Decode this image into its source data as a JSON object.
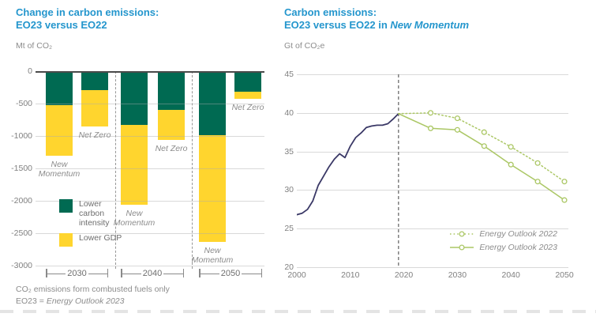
{
  "left_chart": {
    "title_line1": "Change in carbon emissions:",
    "title_line2": "EO23 versus EO22",
    "unit": "Mt of CO₂",
    "legend": [
      {
        "label": "Lower carbon intensity",
        "color": "#006a52"
      },
      {
        "label": "Lower GDP",
        "color": "#ffd52e"
      }
    ],
    "footnote1": "CO₂ emissions form combusted fuels only",
    "footnote2_prefix": "EO23 = ",
    "footnote2_italic": "Energy Outlook 2023"
  },
  "right_chart": {
    "title_line1": "Carbon emissions:",
    "title_line2_prefix": "EO23 versus EO22 in ",
    "title_line2_italic": "New Momentum",
    "unit": "Gt of CO₂e"
  },
  "colors": {
    "title_teal": "#2496cd",
    "bar_green": "#006a52",
    "bar_yellow": "#ffd52e",
    "historical_navy": "#3a3866",
    "outlook_green": "#abc765",
    "text_gray": "#8c8c8c",
    "gridline_gray": "#d9d9d9"
  },
  "chart_data": [
    {
      "type": "bar",
      "title": "Change in carbon emissions: EO23 versus EO22",
      "ylabel": "Mt of CO₂",
      "ylim": [
        -3000,
        0
      ],
      "yticks": [
        0,
        -500,
        -1000,
        -1500,
        -2000,
        -2500,
        -3000
      ],
      "grid": true,
      "groups": [
        "2030",
        "2040",
        "2050"
      ],
      "stack_series": [
        "Lower carbon intensity",
        "Lower GDP"
      ],
      "bars": [
        {
          "group": "2030",
          "scenario": "New Momentum",
          "lower_carbon_intensity": -520,
          "lower_gdp": -790,
          "total": -1310
        },
        {
          "group": "2030",
          "scenario": "Net Zero",
          "lower_carbon_intensity": -290,
          "lower_gdp": -560,
          "total": -850
        },
        {
          "group": "2040",
          "scenario": "New Momentum",
          "lower_carbon_intensity": -830,
          "lower_gdp": -1230,
          "total": -2060
        },
        {
          "group": "2040",
          "scenario": "Net Zero",
          "lower_carbon_intensity": -600,
          "lower_gdp": -460,
          "total": -1060
        },
        {
          "group": "2050",
          "scenario": "New Momentum",
          "lower_carbon_intensity": -990,
          "lower_gdp": -1650,
          "total": -2640
        },
        {
          "group": "2050",
          "scenario": "Net Zero",
          "lower_carbon_intensity": -320,
          "lower_gdp": -110,
          "total": -430
        }
      ],
      "colors": {
        "lower_carbon_intensity": "#006a52",
        "lower_gdp": "#ffd52e"
      }
    },
    {
      "type": "line",
      "title": "Carbon emissions: EO23 versus EO22 in New Momentum",
      "ylabel": "Gt of CO₂e",
      "xlim": [
        2000,
        2050
      ],
      "ylim": [
        20,
        45
      ],
      "xticks": [
        2000,
        2010,
        2020,
        2030,
        2040,
        2050
      ],
      "yticks": [
        20,
        25,
        30,
        35,
        40,
        45
      ],
      "vline_x": 2019,
      "legend_position": "lower right",
      "series": [
        {
          "name": "Historical",
          "color": "#3a3866",
          "style": "solid",
          "markers": false,
          "in_legend": false,
          "x": [
            2000,
            2001,
            2002,
            2003,
            2004,
            2005,
            2006,
            2007,
            2008,
            2009,
            2010,
            2011,
            2012,
            2013,
            2014,
            2015,
            2016,
            2017,
            2018,
            2019
          ],
          "y": [
            26.8,
            27.0,
            27.5,
            28.6,
            30.6,
            31.8,
            33.0,
            34.0,
            34.7,
            34.2,
            35.7,
            36.8,
            37.4,
            38.1,
            38.3,
            38.4,
            38.4,
            38.6,
            39.2,
            39.9
          ]
        },
        {
          "name": "Energy Outlook 2022",
          "color": "#abc765",
          "style": "dotted",
          "markers": true,
          "in_legend": true,
          "x": [
            2019,
            2025,
            2030,
            2035,
            2040,
            2045,
            2050
          ],
          "y": [
            39.9,
            40.0,
            39.3,
            37.5,
            35.6,
            33.5,
            31.1
          ]
        },
        {
          "name": "Energy Outlook 2023",
          "color": "#abc765",
          "style": "solid",
          "markers": true,
          "in_legend": true,
          "x": [
            2019,
            2025,
            2030,
            2035,
            2040,
            2045,
            2050
          ],
          "y": [
            39.9,
            38.0,
            37.8,
            35.7,
            33.3,
            31.1,
            28.7
          ]
        }
      ]
    }
  ]
}
